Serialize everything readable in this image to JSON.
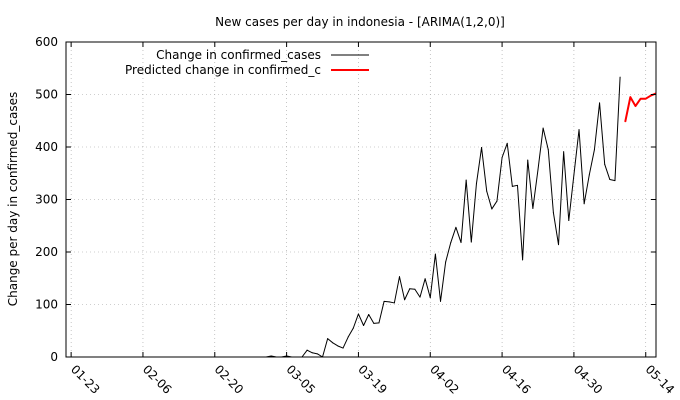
{
  "chart_data": {
    "type": "line",
    "title": "New cases per day in indonesia -  [ARIMA(1,2,0)]",
    "xlabel": "",
    "ylabel": "Change per day in confirmed_cases",
    "ylim": [
      0,
      600
    ],
    "yticks": [
      0,
      100,
      200,
      300,
      400,
      500,
      600
    ],
    "xticks": [
      "01-23",
      "02-06",
      "02-20",
      "03-05",
      "03-19",
      "04-02",
      "04-16",
      "04-30",
      "05-14"
    ],
    "xlim": [
      "01-22",
      "05-16"
    ],
    "grid": true,
    "legend_position": "top-left",
    "series": [
      {
        "name": "Change in confirmed_cases",
        "color": "#000000",
        "start": "03-01",
        "values": [
          0,
          2,
          0,
          0,
          2,
          0,
          0,
          0,
          13,
          8,
          6,
          0,
          35,
          27,
          21,
          17,
          38,
          55,
          82,
          60,
          81,
          64,
          65,
          106,
          105,
          103,
          153,
          109,
          130,
          129,
          114,
          149,
          113,
          196,
          106,
          181,
          218,
          247,
          218,
          337,
          219,
          330,
          399,
          316,
          282,
          297,
          380,
          407,
          325,
          327,
          185,
          375,
          283,
          357,
          436,
          395,
          275,
          214,
          391,
          260,
          347,
          433,
          292,
          347,
          395,
          484,
          367,
          338,
          336,
          533
        ]
      },
      {
        "name": "Predicted change in confirmed_c",
        "color": "#ff0000",
        "start": "05-10",
        "values": [
          448,
          495,
          478,
          492,
          492,
          498,
          502
        ]
      }
    ]
  }
}
